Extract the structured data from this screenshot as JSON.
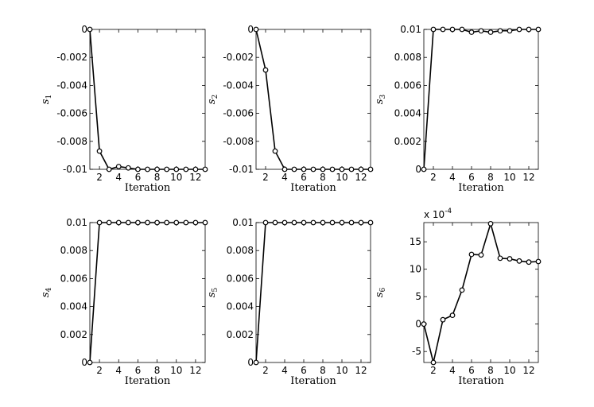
{
  "figure": {
    "charts": [
      {
        "id": "s1",
        "ylabel": "s",
        "ylabel_sub": "1"
      },
      {
        "id": "s2",
        "ylabel": "s",
        "ylabel_sub": "2"
      },
      {
        "id": "s3",
        "ylabel": "s",
        "ylabel_sub": "3"
      },
      {
        "id": "s4",
        "ylabel": "s",
        "ylabel_sub": "4"
      },
      {
        "id": "s5",
        "ylabel": "s",
        "ylabel_sub": "5"
      },
      {
        "id": "s6",
        "ylabel": "s",
        "ylabel_sub": "6",
        "multiplier": "x 10",
        "multiplier_exp": "-4"
      }
    ]
  },
  "chart_data": [
    {
      "type": "line",
      "xlabel": "Iteration",
      "ylabel": "s1",
      "xlim": [
        1,
        13
      ],
      "ylim": [
        -0.01,
        0
      ],
      "xticks": [
        2,
        4,
        6,
        8,
        10,
        12
      ],
      "yticks": [
        -0.01,
        -0.008,
        -0.006,
        -0.004,
        -0.002,
        0
      ],
      "ytick_labels": [
        "-0.01",
        "-0.008",
        "-0.006",
        "-0.004",
        "-0.002",
        "0"
      ],
      "x": [
        1,
        2,
        3,
        4,
        5,
        6,
        7,
        8,
        9,
        10,
        11,
        12,
        13
      ],
      "y": [
        0,
        -0.0087,
        -0.01,
        -0.0098,
        -0.0099,
        -0.01,
        -0.01,
        -0.01,
        -0.01,
        -0.01,
        -0.01,
        -0.01,
        -0.01
      ],
      "marker": "circle",
      "grid": false
    },
    {
      "type": "line",
      "xlabel": "Iteration",
      "ylabel": "s2",
      "xlim": [
        1,
        13
      ],
      "ylim": [
        -0.01,
        0
      ],
      "xticks": [
        2,
        4,
        6,
        8,
        10,
        12
      ],
      "yticks": [
        -0.01,
        -0.008,
        -0.006,
        -0.004,
        -0.002,
        0
      ],
      "ytick_labels": [
        "-0.01",
        "-0.008",
        "-0.006",
        "-0.004",
        "-0.002",
        "0"
      ],
      "x": [
        1,
        2,
        3,
        4,
        5,
        6,
        7,
        8,
        9,
        10,
        11,
        12,
        13
      ],
      "y": [
        0,
        -0.0029,
        -0.0087,
        -0.01,
        -0.01,
        -0.01,
        -0.01,
        -0.01,
        -0.01,
        -0.01,
        -0.01,
        -0.01,
        -0.01
      ],
      "marker": "circle",
      "grid": false
    },
    {
      "type": "line",
      "xlabel": "Iteration",
      "ylabel": "s3",
      "xlim": [
        1,
        13
      ],
      "ylim": [
        0,
        0.01
      ],
      "xticks": [
        2,
        4,
        6,
        8,
        10,
        12
      ],
      "yticks": [
        0,
        0.002,
        0.004,
        0.006,
        0.008,
        0.01
      ],
      "ytick_labels": [
        "0",
        "0.002",
        "0.004",
        "0.006",
        "0.008",
        "0.01"
      ],
      "x": [
        1,
        2,
        3,
        4,
        5,
        6,
        7,
        8,
        9,
        10,
        11,
        12,
        13
      ],
      "y": [
        0,
        0.01,
        0.01,
        0.01,
        0.01,
        0.0098,
        0.0099,
        0.0098,
        0.0099,
        0.0099,
        0.01,
        0.01,
        0.01
      ],
      "marker": "circle",
      "grid": false
    },
    {
      "type": "line",
      "xlabel": "Iteration",
      "ylabel": "s4",
      "xlim": [
        1,
        13
      ],
      "ylim": [
        0,
        0.01
      ],
      "xticks": [
        2,
        4,
        6,
        8,
        10,
        12
      ],
      "yticks": [
        0,
        0.002,
        0.004,
        0.006,
        0.008,
        0.01
      ],
      "ytick_labels": [
        "0",
        "0.002",
        "0.004",
        "0.006",
        "0.008",
        "0.01"
      ],
      "x": [
        1,
        2,
        3,
        4,
        5,
        6,
        7,
        8,
        9,
        10,
        11,
        12,
        13
      ],
      "y": [
        0,
        0.01,
        0.01,
        0.01,
        0.01,
        0.01,
        0.01,
        0.01,
        0.01,
        0.01,
        0.01,
        0.01,
        0.01
      ],
      "marker": "circle",
      "grid": false
    },
    {
      "type": "line",
      "xlabel": "Iteration",
      "ylabel": "s5",
      "xlim": [
        1,
        13
      ],
      "ylim": [
        0,
        0.01
      ],
      "xticks": [
        2,
        4,
        6,
        8,
        10,
        12
      ],
      "yticks": [
        0,
        0.002,
        0.004,
        0.006,
        0.008,
        0.01
      ],
      "ytick_labels": [
        "0",
        "0.002",
        "0.004",
        "0.006",
        "0.008",
        "0.01"
      ],
      "x": [
        1,
        2,
        3,
        4,
        5,
        6,
        7,
        8,
        9,
        10,
        11,
        12,
        13
      ],
      "y": [
        0,
        0.01,
        0.01,
        0.01,
        0.01,
        0.01,
        0.01,
        0.01,
        0.01,
        0.01,
        0.01,
        0.01,
        0.01
      ],
      "marker": "circle",
      "grid": false
    },
    {
      "type": "line",
      "xlabel": "Iteration",
      "ylabel": "s6",
      "xlim": [
        1,
        13
      ],
      "ylim": [
        -7,
        18.5
      ],
      "xticks": [
        2,
        4,
        6,
        8,
        10,
        12
      ],
      "yticks": [
        -5,
        0,
        5,
        10,
        15
      ],
      "ytick_labels": [
        "-5",
        "0",
        "5",
        "10",
        "15"
      ],
      "x": [
        1,
        2,
        3,
        4,
        5,
        6,
        7,
        8,
        9,
        10,
        11,
        12,
        13
      ],
      "y": [
        0,
        -7,
        0.8,
        1.6,
        6.2,
        12.7,
        12.6,
        18.3,
        12,
        11.9,
        11.5,
        11.3,
        11.4
      ],
      "marker": "circle",
      "grid": false
    }
  ]
}
